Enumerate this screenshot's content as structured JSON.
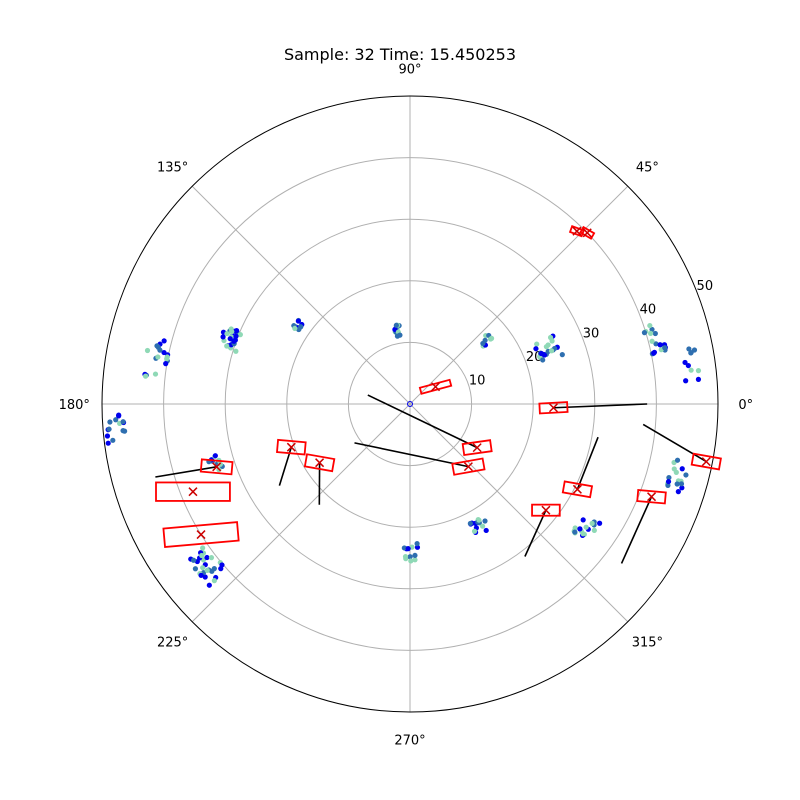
{
  "chart_data": {
    "type": "scatter",
    "projection": "polar",
    "title": "Sample: 32 Time: 15.450253",
    "r_max": 50,
    "r_ticks": [
      10,
      20,
      30,
      40,
      50
    ],
    "r_tick_labels": [
      "10",
      "20",
      "30",
      "40",
      "50"
    ],
    "theta_ticks_deg": [
      0,
      45,
      90,
      135,
      180,
      225,
      270,
      315
    ],
    "theta_tick_labels": [
      "0°",
      "45°",
      "90°",
      "135°",
      "180°",
      "225°",
      "270°",
      "315°"
    ],
    "grid": true,
    "colors": {
      "point_dark": "#0000ee",
      "point_mid": "#2e6fb0",
      "point_light": "#8fd9b6",
      "box": "#ff0000",
      "marker": "#cc0000",
      "track": "#000000",
      "grid": "#b0b0b0"
    },
    "point_clusters": [
      {
        "theta_deg": 22,
        "r": 24,
        "n": 22,
        "spread": 4
      },
      {
        "theta_deg": 15,
        "r": 41,
        "n": 18,
        "spread": 3
      },
      {
        "theta_deg": 8,
        "r": 46,
        "n": 10,
        "spread": 3
      },
      {
        "theta_deg": 100,
        "r": 12,
        "n": 12,
        "spread": 2
      },
      {
        "theta_deg": 160,
        "r": 31,
        "n": 26,
        "spread": 3
      },
      {
        "theta_deg": 170,
        "r": 42,
        "n": 18,
        "spread": 4
      },
      {
        "theta_deg": 185,
        "r": 48,
        "n": 14,
        "spread": 3
      },
      {
        "theta_deg": 197,
        "r": 33,
        "n": 10,
        "spread": 2
      },
      {
        "theta_deg": 218,
        "r": 42,
        "n": 28,
        "spread": 4
      },
      {
        "theta_deg": 270,
        "r": 24,
        "n": 12,
        "spread": 3
      },
      {
        "theta_deg": 300,
        "r": 23,
        "n": 14,
        "spread": 3
      },
      {
        "theta_deg": 325,
        "r": 35,
        "n": 18,
        "spread": 3
      },
      {
        "theta_deg": 345,
        "r": 45,
        "n": 16,
        "spread": 3
      },
      {
        "theta_deg": 145,
        "r": 22,
        "n": 10,
        "spread": 2
      },
      {
        "theta_deg": 40,
        "r": 16,
        "n": 8,
        "spread": 2
      }
    ],
    "tracked_objects": [
      {
        "theta_deg": 358.5,
        "r": 23.3,
        "box_deg": 3,
        "box_w": 4.5,
        "box_h": 1.6,
        "track_to": [
          0.0,
          38.5
        ]
      },
      {
        "theta_deg": 327,
        "r": 13,
        "box_deg": 8,
        "box_w": 4.5,
        "box_h": 1.8,
        "track_to": [
          168,
          7
        ]
      },
      {
        "theta_deg": 313,
        "r": 13.9,
        "box_deg": 10,
        "box_w": 5,
        "box_h": 1.8,
        "track_to": [
          215,
          11
        ]
      },
      {
        "theta_deg": 333,
        "r": 30.5,
        "box_deg": -10,
        "box_w": 4.5,
        "box_h": 1.8,
        "track_to": [
          350,
          31
        ]
      },
      {
        "theta_deg": 322,
        "r": 28,
        "box_deg": 0,
        "box_w": 4.5,
        "box_h": 1.8,
        "track_to": [
          307,
          31
        ]
      },
      {
        "theta_deg": 339,
        "r": 42,
        "box_deg": -5,
        "box_w": 4.5,
        "box_h": 1.8,
        "track_to": [
          323,
          43
        ]
      },
      {
        "theta_deg": 349,
        "r": 49,
        "box_deg": -10,
        "box_w": 4.5,
        "box_h": 1.8,
        "track_to": [
          355,
          38
        ]
      },
      {
        "theta_deg": 198,
        "r": 33,
        "box_deg": -5,
        "box_w": 5,
        "box_h": 2,
        "track_to": [
          196,
          43
        ]
      },
      {
        "theta_deg": 200,
        "r": 20.5,
        "box_deg": -5,
        "box_w": 4.5,
        "box_h": 2,
        "track_to": [
          212,
          25
        ]
      },
      {
        "theta_deg": 213,
        "r": 17.5,
        "box_deg": -10,
        "box_w": 4.5,
        "box_h": 2,
        "track_to": [
          228,
          22
        ]
      },
      {
        "theta_deg": 202,
        "r": 38,
        "box_deg": 0,
        "box_w": 12,
        "box_h": 3,
        "track_to": [
          202,
          38
        ]
      },
      {
        "theta_deg": 212,
        "r": 40,
        "box_deg": 5,
        "box_w": 12,
        "box_h": 3,
        "track_to": [
          212,
          40
        ]
      },
      {
        "theta_deg": 34,
        "r": 5,
        "box_deg": 15,
        "box_w": 5,
        "box_h": 1,
        "track_to": [
          34,
          5
        ]
      },
      {
        "theta_deg": 46,
        "r": 39,
        "box_deg": -20,
        "box_w": 2,
        "box_h": 1,
        "track_to": [
          46,
          39
        ]
      },
      {
        "theta_deg": 44,
        "r": 40,
        "box_deg": -30,
        "box_w": 2,
        "box_h": 1,
        "track_to": [
          44,
          40
        ]
      }
    ]
  }
}
